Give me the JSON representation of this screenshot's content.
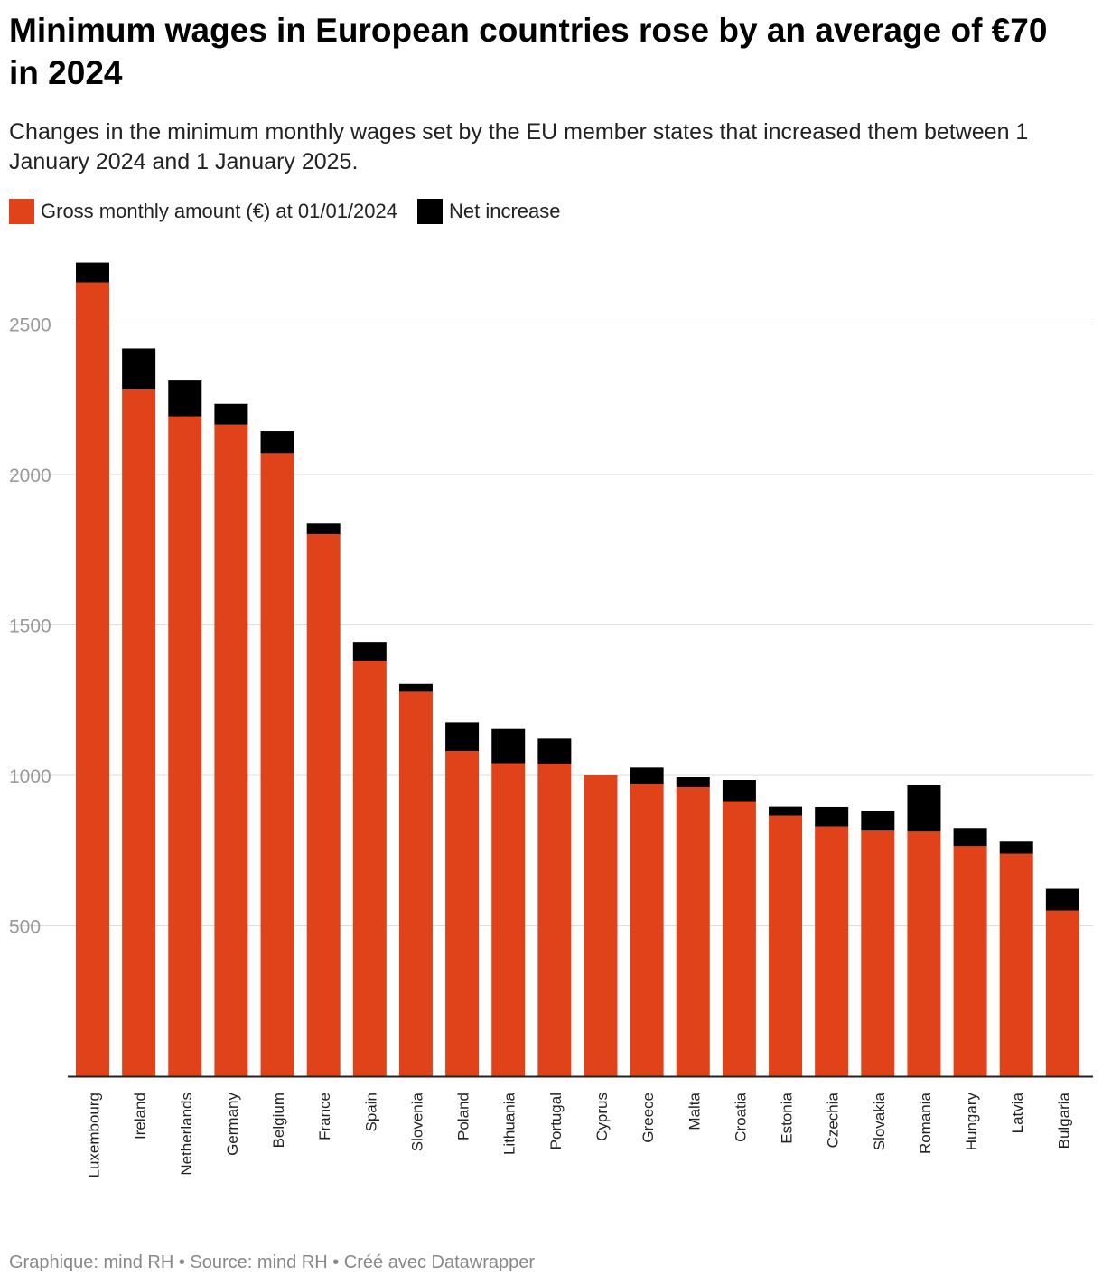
{
  "title": "Minimum wages in European countries rose by an average of €70 in 2024",
  "subtitle": "Changes in the minimum monthly wages set by the EU member states that increased them between 1 January 2024 and 1 January 2025.",
  "footer": "Graphique: mind RH • Source: mind RH • Créé avec Datawrapper",
  "colors": {
    "gross": "#e0431a",
    "increase": "#000000",
    "grid": "#dddddd",
    "tick": "#999999"
  },
  "chart_data": {
    "type": "bar",
    "stacked": true,
    "categories": [
      "Luxembourg",
      "Ireland",
      "Netherlands",
      "Germany",
      "Belgium",
      "France",
      "Spain",
      "Slovenia",
      "Poland",
      "Lithuania",
      "Portugal",
      "Cyprus",
      "Greece",
      "Malta",
      "Croatia",
      "Estonia",
      "Czechia",
      "Slovakia",
      "Romania",
      "Hungary",
      "Latvia",
      "Bulgaria"
    ],
    "series": [
      {
        "name": "Gross monthly amount (€) at 01/01/2024",
        "values": [
          2638,
          2282,
          2193,
          2166,
          2071,
          1802,
          1381,
          1278,
          1081,
          1040,
          1039,
          1000,
          970,
          961,
          914,
          866,
          830,
          816,
          813,
          765,
          740,
          551
        ]
      },
      {
        "name": "Net increase",
        "values": [
          66,
          137,
          119,
          69,
          73,
          35,
          63,
          26,
          95,
          114,
          83,
          0,
          56,
          33,
          71,
          30,
          65,
          66,
          154,
          60,
          40,
          72
        ]
      }
    ],
    "yticks": [
      500,
      1000,
      1500,
      2000,
      2500
    ],
    "ylim": [
      0,
      2800
    ],
    "grid": true,
    "legend_position": "top-left"
  }
}
